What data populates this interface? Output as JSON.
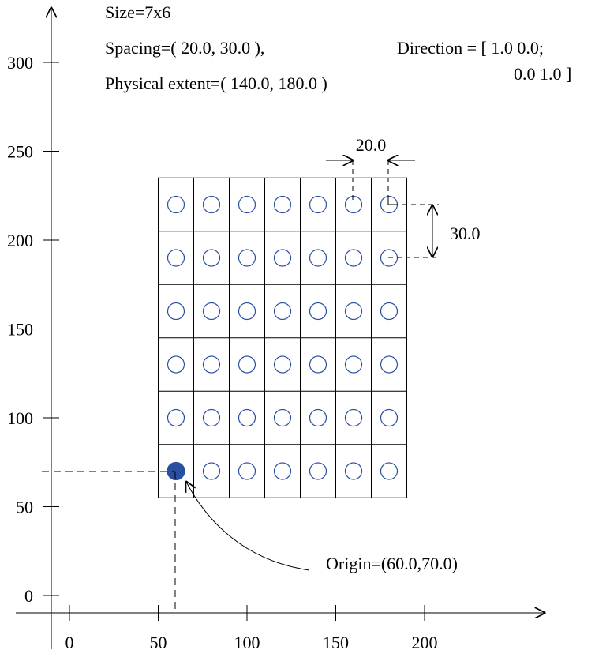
{
  "header": {
    "size": "Size=7x6",
    "spacing": "Spacing=( 20.0, 30.0 ),",
    "extent": "Physical extent=( 140.0, 180.0 )",
    "direction_line1": "Direction = [ 1.0 0.0;",
    "direction_line2": "0.0 1.0 ]"
  },
  "axes": {
    "x_ticks": [
      "0",
      "50",
      "100",
      "150",
      "200"
    ],
    "y_ticks": [
      "0",
      "50",
      "100",
      "150",
      "200",
      "250",
      "300"
    ]
  },
  "image": {
    "columns": 7,
    "rows": 6,
    "origin": [
      60.0,
      70.0
    ],
    "spacing": [
      20.0,
      30.0
    ]
  },
  "annotations": {
    "spacing_x": "20.0",
    "spacing_y": "30.0",
    "origin": "Origin=(60.0,70.0)"
  },
  "colors": {
    "pixel_circle": "#2b4fa0",
    "origin_fill": "#2b4fa0",
    "lines": "#000000"
  }
}
